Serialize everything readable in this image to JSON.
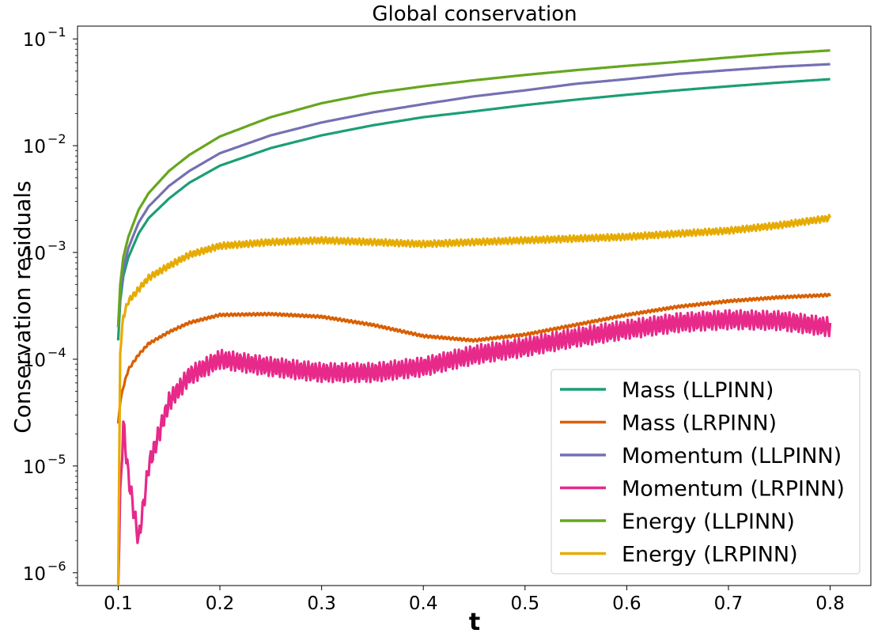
{
  "chart_data": {
    "type": "line",
    "title": "Global conservation",
    "xlabel": "t",
    "ylabel": "Conservation residuals",
    "yscale": "log",
    "xlim": [
      0.06,
      0.84
    ],
    "ylim_log10": [
      -6.12,
      -0.88
    ],
    "xticks": [
      0.1,
      0.2,
      0.3,
      0.4,
      0.5,
      0.6,
      0.7,
      0.8
    ],
    "xtick_labels": [
      "0.1",
      "0.2",
      "0.3",
      "0.4",
      "0.5",
      "0.6",
      "0.7",
      "0.8"
    ],
    "yticks_exp": [
      -6,
      -5,
      -4,
      -3,
      -2,
      -1
    ],
    "ytick_base": "10",
    "ytick_exponents": [
      "−6",
      "−5",
      "−4",
      "−3",
      "−2",
      "−1"
    ],
    "legend_position": "lower-right",
    "x": [
      0.1,
      0.102,
      0.105,
      0.11,
      0.12,
      0.13,
      0.15,
      0.17,
      0.2,
      0.25,
      0.3,
      0.35,
      0.4,
      0.45,
      0.5,
      0.55,
      0.6,
      0.65,
      0.7,
      0.75,
      0.8
    ],
    "series": [
      {
        "name": "Mass (LLPINN)",
        "color": "#1b9e77",
        "values": [
          0.00015,
          0.00035,
          0.0006,
          0.0009,
          0.0015,
          0.0021,
          0.0032,
          0.0045,
          0.0065,
          0.0095,
          0.0125,
          0.0155,
          0.0185,
          0.021,
          0.024,
          0.027,
          0.03,
          0.033,
          0.036,
          0.039,
          0.042
        ],
        "wiggle": 0
      },
      {
        "name": "Mass (LRPINN)",
        "color": "#d95f02",
        "values": [
          2.5e-05,
          4e-05,
          5.5e-05,
          8e-05,
          0.00011,
          0.00014,
          0.00018,
          0.00022,
          0.00026,
          0.000265,
          0.00025,
          0.00021,
          0.000165,
          0.00015,
          0.00017,
          0.00021,
          0.00026,
          0.00031,
          0.00035,
          0.00038,
          0.0004
        ],
        "wiggle": 0.012
      },
      {
        "name": "Momentum (LLPINN)",
        "color": "#7570b3",
        "values": [
          0.0002,
          0.0004,
          0.0007,
          0.0011,
          0.0019,
          0.0027,
          0.0042,
          0.0058,
          0.0085,
          0.0125,
          0.0165,
          0.0205,
          0.0245,
          0.029,
          0.033,
          0.038,
          0.042,
          0.047,
          0.051,
          0.055,
          0.058
        ],
        "wiggle": 0
      },
      {
        "name": "Momentum (LRPINN)",
        "color": "#e7298a",
        "values": [
          7e-07,
          5e-06,
          2.5e-05,
          8e-06,
          2e-06,
          1e-05,
          4e-05,
          7e-05,
          0.0001,
          8.5e-05,
          7.5e-05,
          7.5e-05,
          8.5e-05,
          0.00011,
          0.00013,
          0.00016,
          0.00019,
          0.00022,
          0.000235,
          0.00023,
          0.0002
        ],
        "wiggle": 0.09
      },
      {
        "name": "Energy (LLPINN)",
        "color": "#66a61e",
        "values": [
          0.0002,
          0.0005,
          0.0009,
          0.0014,
          0.0025,
          0.0036,
          0.0058,
          0.0082,
          0.0122,
          0.0185,
          0.025,
          0.031,
          0.036,
          0.041,
          0.046,
          0.051,
          0.056,
          0.061,
          0.067,
          0.073,
          0.078
        ],
        "wiggle": 0
      },
      {
        "name": "Energy (LRPINN)",
        "color": "#e6ab02",
        "values": [
          7e-07,
          0.00012,
          0.00025,
          0.00035,
          0.00045,
          0.00058,
          0.00075,
          0.00095,
          0.00115,
          0.00125,
          0.0013,
          0.00125,
          0.0012,
          0.00125,
          0.0013,
          0.00135,
          0.0014,
          0.0015,
          0.0016,
          0.0018,
          0.0021
        ],
        "wiggle": 0.03
      }
    ]
  }
}
